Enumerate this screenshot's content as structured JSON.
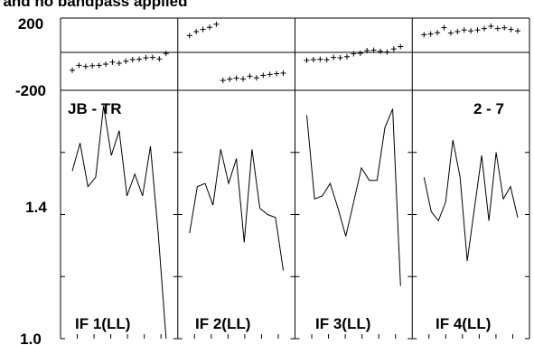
{
  "chart_data": {
    "type": "line",
    "title": "I and no bandpass applied",
    "baseline_label": "JB - TR",
    "channel_label": "2 - 7",
    "phase_axis": {
      "ylim": [
        -200,
        200
      ],
      "tick_labels": [
        "200",
        "-200"
      ]
    },
    "amp_axis": {
      "ylim": [
        1.0,
        1.8
      ],
      "tick_labels": [
        "1.4",
        "1.0"
      ]
    },
    "panels": [
      {
        "label": "IF 1(LL)",
        "phase": [
          -89,
          -62,
          -68,
          -64,
          -62,
          -55,
          -44,
          -50,
          -39,
          -30,
          -28,
          -20,
          -18,
          -26,
          4
        ],
        "amplitude": [
          1.54,
          1.63,
          1.49,
          1.52,
          1.75,
          1.59,
          1.67,
          1.46,
          1.53,
          1.46,
          1.62,
          1.34,
          1.0
        ]
      },
      {
        "label": "IF 2(LL)",
        "phase": [
          103,
          125,
          137,
          149,
          166,
          -145,
          -138,
          -133,
          -137,
          -122,
          -131,
          -117,
          -112,
          -108,
          -105
        ],
        "amplitude": [
          1.34,
          1.49,
          1.5,
          1.43,
          1.61,
          1.5,
          1.58,
          1.31,
          1.61,
          1.42,
          1.4,
          1.39,
          1.22
        ]
      },
      {
        "label": "IF 3(LL)",
        "phase": [
          -34,
          -30,
          -28,
          -31,
          -18,
          -20,
          -14,
          2,
          5,
          20,
          22,
          16,
          12,
          29,
          42
        ],
        "amplitude": [
          1.72,
          1.45,
          1.46,
          1.5,
          1.42,
          1.33,
          1.44,
          1.55,
          1.51,
          1.51,
          1.68,
          1.74,
          1.17
        ]
      },
      {
        "label": "IF 4(LL)",
        "phase": [
          108,
          112,
          119,
          147,
          117,
          125,
          134,
          129,
          134,
          142,
          155,
          142,
          146,
          137,
          129
        ],
        "amplitude": [
          1.52,
          1.41,
          1.38,
          1.44,
          1.64,
          1.52,
          1.25,
          1.42,
          1.59,
          1.38,
          1.6,
          1.45,
          1.49,
          1.39
        ]
      }
    ]
  }
}
